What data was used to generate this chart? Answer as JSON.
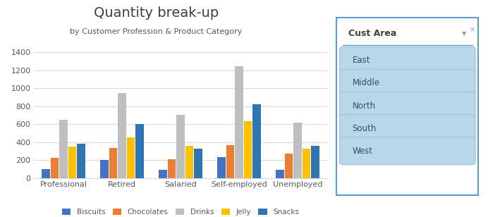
{
  "title": "Quantity break-up",
  "subtitle": "by Customer Profession & Product Category",
  "categories": [
    "Professional",
    "Retired",
    "Salaried",
    "Self-employed",
    "Unemployed"
  ],
  "series": {
    "Biscuits": [
      100,
      200,
      90,
      235,
      90
    ],
    "Chocolates": [
      225,
      335,
      210,
      365,
      270
    ],
    "Drinks": [
      650,
      950,
      700,
      1245,
      615
    ],
    "Jelly": [
      350,
      450,
      355,
      635,
      330
    ],
    "Snacks": [
      385,
      600,
      330,
      820,
      360
    ]
  },
  "bar_colors": [
    "#4472C4",
    "#ED7D31",
    "#BFBFBF",
    "#FFC000",
    "#2E75B6"
  ],
  "ylim": [
    0,
    1500
  ],
  "yticks": [
    0,
    200,
    400,
    600,
    800,
    1000,
    1200,
    1400
  ],
  "legend_labels": [
    "Biscuits",
    "Chocolates",
    "Drinks",
    "Jelly",
    "Snacks"
  ],
  "slicer_title": "Cust Area",
  "slicer_items": [
    "East",
    "Middle",
    "North",
    "South",
    "West"
  ],
  "bg_color": "#FFFFFF",
  "plot_bg": "#FFFFFF",
  "grid_color": "#D9D9D9",
  "slicer_border": "#5B9BD5",
  "slicer_btn_bg": "#B8D7E8",
  "slicer_btn_border": "#9DC3D4"
}
